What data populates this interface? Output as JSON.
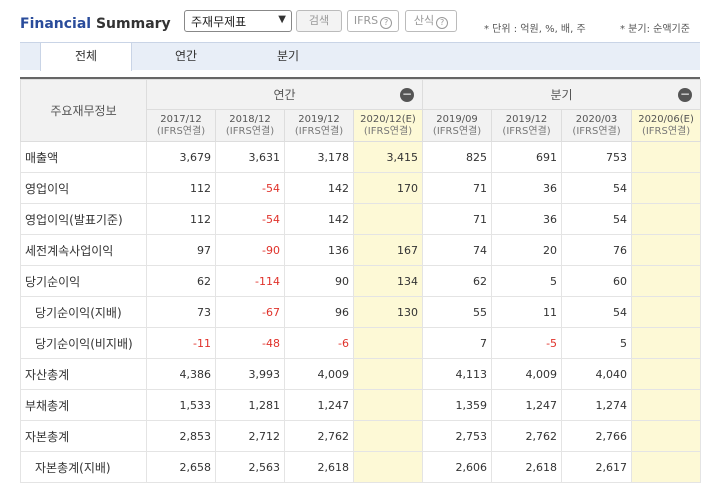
{
  "header": {
    "title_part1": "Financial",
    "title_part2": " Summary",
    "select_value": "주재무제표",
    "search_label": "검색",
    "ifrs_label": "IFRS",
    "formula_label": "산식",
    "unit_note": "* 단위 : 억원, %, 배, 주",
    "quarter_note": "* 분기: 순액기준"
  },
  "tabs": [
    "전체",
    "연간",
    "분기"
  ],
  "table": {
    "corner_label": "주요재무정보",
    "group_annual": "연간",
    "group_quarter": "분기",
    "columns": [
      {
        "period": "2017/12",
        "basis": "(IFRS연결)"
      },
      {
        "period": "2018/12",
        "basis": "(IFRS연결)"
      },
      {
        "period": "2019/12",
        "basis": "(IFRS연결)"
      },
      {
        "period": "2020/12(E)",
        "basis": "(IFRS연결)"
      },
      {
        "period": "2019/09",
        "basis": "(IFRS연결)"
      },
      {
        "period": "2019/12",
        "basis": "(IFRS연결)"
      },
      {
        "period": "2020/03",
        "basis": "(IFRS연결)"
      },
      {
        "period": "2020/06(E)",
        "basis": "(IFRS연결)"
      }
    ],
    "rows": [
      {
        "label": "매출액",
        "indent": false,
        "values": [
          "3,679",
          "3,631",
          "3,178",
          "3,415",
          "825",
          "691",
          "753",
          ""
        ]
      },
      {
        "label": "영업이익",
        "indent": false,
        "values": [
          "112",
          "-54",
          "142",
          "170",
          "71",
          "36",
          "54",
          ""
        ]
      },
      {
        "label": "영업이익(발표기준)",
        "indent": false,
        "values": [
          "112",
          "-54",
          "142",
          "",
          "71",
          "36",
          "54",
          ""
        ]
      },
      {
        "label": "세전계속사업이익",
        "indent": false,
        "values": [
          "97",
          "-90",
          "136",
          "167",
          "74",
          "20",
          "76",
          ""
        ]
      },
      {
        "label": "당기순이익",
        "indent": false,
        "values": [
          "62",
          "-114",
          "90",
          "134",
          "62",
          "5",
          "60",
          ""
        ]
      },
      {
        "label": "당기순이익(지배)",
        "indent": true,
        "values": [
          "73",
          "-67",
          "96",
          "130",
          "55",
          "11",
          "54",
          ""
        ]
      },
      {
        "label": "당기순이익(비지배)",
        "indent": true,
        "values": [
          "-11",
          "-48",
          "-6",
          "",
          "7",
          "-5",
          "5",
          ""
        ]
      },
      {
        "label": "자산총계",
        "indent": false,
        "values": [
          "4,386",
          "3,993",
          "4,009",
          "",
          "4,113",
          "4,009",
          "4,040",
          ""
        ]
      },
      {
        "label": "부채총계",
        "indent": false,
        "values": [
          "1,533",
          "1,281",
          "1,247",
          "",
          "1,359",
          "1,247",
          "1,274",
          ""
        ]
      },
      {
        "label": "자본총계",
        "indent": false,
        "values": [
          "2,853",
          "2,712",
          "2,762",
          "",
          "2,753",
          "2,762",
          "2,766",
          ""
        ]
      },
      {
        "label": "자본총계(지배)",
        "indent": true,
        "values": [
          "2,658",
          "2,563",
          "2,618",
          "",
          "2,606",
          "2,618",
          "2,617",
          ""
        ]
      }
    ]
  }
}
